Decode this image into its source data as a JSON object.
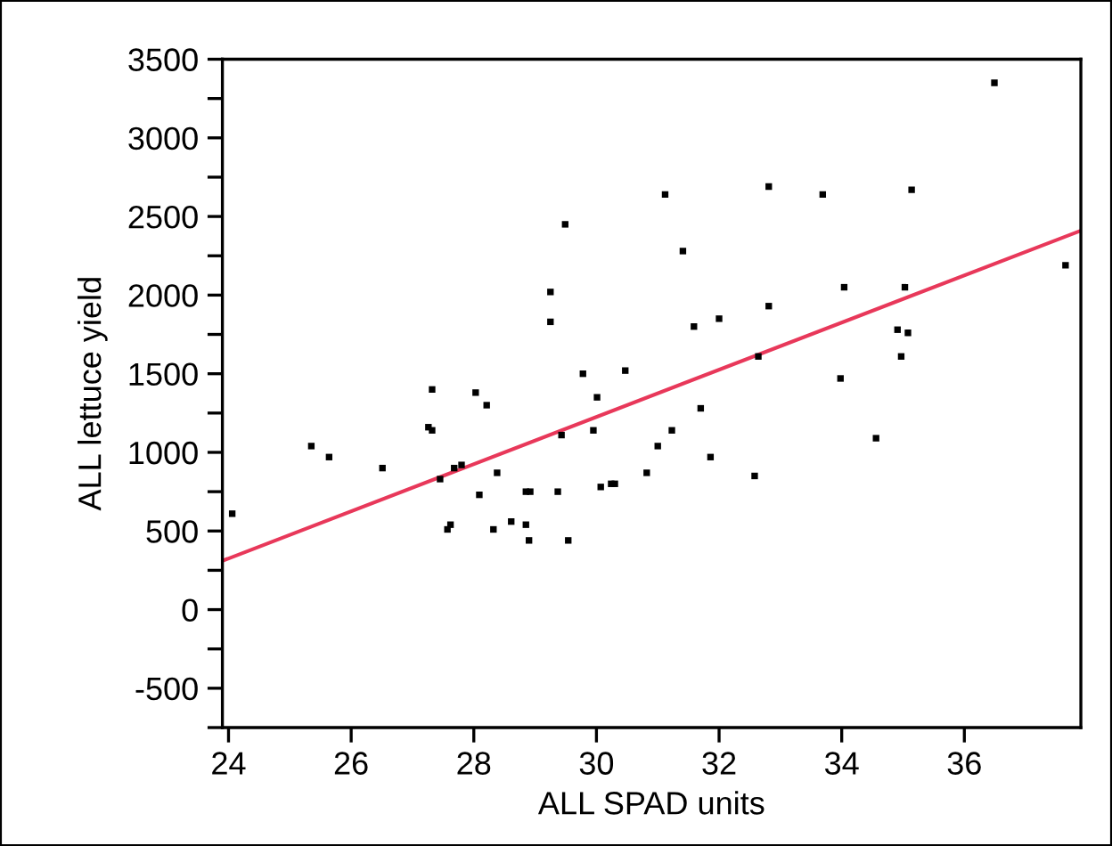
{
  "chart_data": {
    "type": "scatter",
    "xlabel": "ALL SPAD units",
    "ylabel": "ALL lettuce yield",
    "xlim": [
      23.9,
      37.9
    ],
    "ylim": [
      -750,
      3500
    ],
    "xticks": [
      24,
      26,
      28,
      30,
      32,
      34,
      36
    ],
    "yticks": [
      {
        "value": -750,
        "label": null
      },
      -500,
      {
        "value": -250,
        "label": null
      },
      0,
      {
        "value": 250,
        "label": null
      },
      500,
      {
        "value": 750,
        "label": null
      },
      1000,
      {
        "value": 1250,
        "label": null
      },
      1500,
      {
        "value": 1750,
        "label": null
      },
      2000,
      {
        "value": 2250,
        "label": null
      },
      2500,
      {
        "value": 2750,
        "label": null
      },
      3000,
      {
        "value": 3250,
        "label": null
      },
      3500
    ],
    "grid": false,
    "marker": "square",
    "series": [
      {
        "color": "#000000",
        "x": [
          24.06,
          25.35,
          25.64,
          26.51,
          27.32,
          27.26,
          27.32,
          27.45,
          27.57,
          27.62,
          27.68,
          27.8,
          28.03,
          28.09,
          28.21,
          28.32,
          28.38,
          28.61,
          28.85,
          28.92,
          28.85,
          28.9,
          29.37,
          29.43,
          29.54,
          29.78,
          29.95,
          30.01,
          30.07,
          29.49,
          29.25,
          29.25,
          36.49,
          31.12,
          32.81,
          33.69,
          35.14,
          31.41,
          37.65,
          34.04,
          35.03,
          31.59,
          32.0,
          32.81,
          34.91,
          35.08,
          34.97,
          30.47,
          32.64,
          33.98,
          31.7,
          30.24,
          30.3,
          30.82,
          31.0,
          31.23,
          31.86,
          32.58,
          34.56
        ],
        "values": [
          610,
          1040,
          970,
          900,
          1400,
          1160,
          1140,
          830,
          510,
          540,
          900,
          920,
          1380,
          730,
          1300,
          510,
          870,
          560,
          750,
          750,
          540,
          440,
          750,
          1110,
          440,
          1500,
          1140,
          1350,
          780,
          2450,
          2020,
          1830,
          3350,
          2640,
          2690,
          2640,
          2670,
          2280,
          2190,
          2050,
          2050,
          1800,
          1850,
          1930,
          1780,
          1760,
          1610,
          1520,
          1610,
          1470,
          1280,
          800,
          800,
          870,
          1040,
          1140,
          970,
          850,
          1090
        ]
      },
      {
        "type": "line",
        "color": "#e8385a",
        "x": [
          23.9,
          37.9
        ],
        "values": [
          310,
          2410
        ],
        "marker": "none",
        "line_style": "solid"
      }
    ]
  }
}
